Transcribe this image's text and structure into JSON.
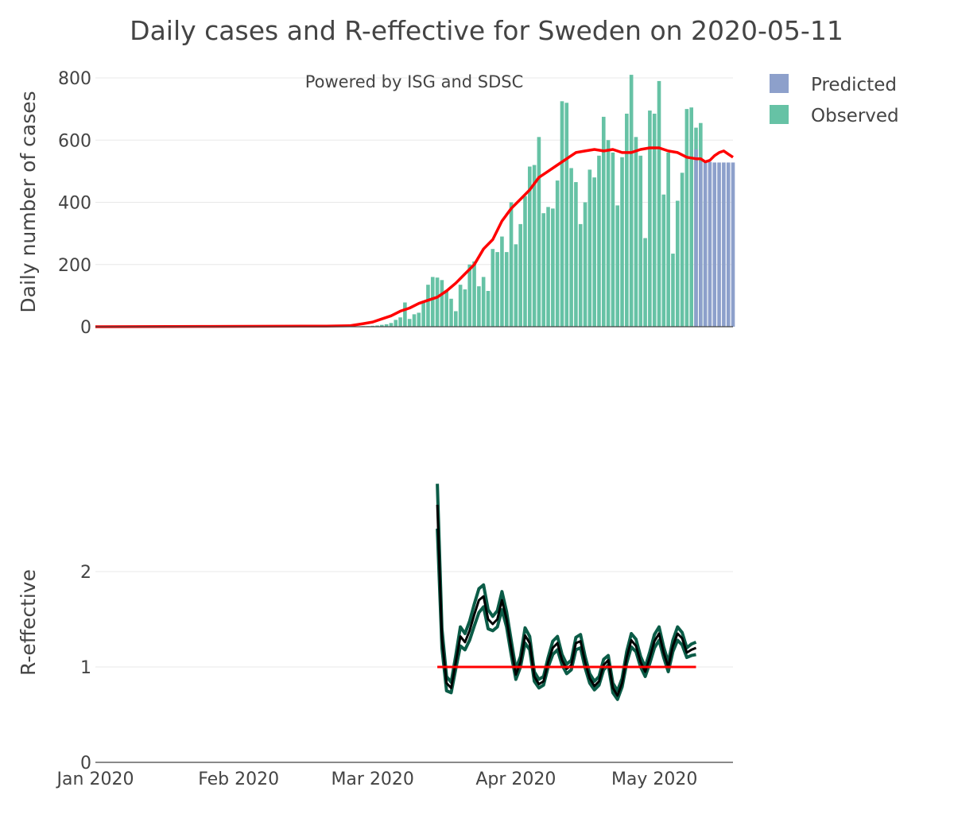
{
  "colors": {
    "observed": "#66c2a5",
    "predicted": "#8da0cb",
    "trend": "#ff0000",
    "r_band": "#0b5c47",
    "r_line": "#000000",
    "grid": "#e8e8e8",
    "text": "#444444"
  },
  "chart_data": [
    {
      "type": "bar",
      "title": "Daily cases and R-effective for Sweden on 2020-05-11",
      "annotation": "Powered by ISG and SDSC",
      "ylabel": "Daily number of cases",
      "ylim": [
        0,
        800
      ],
      "yticks": [
        "0",
        "200",
        "400",
        "600",
        "800"
      ],
      "x_start": "2020-01-01",
      "xlim_days": [
        0,
        138
      ],
      "legend": [
        "Predicted",
        "Observed"
      ],
      "legend_position": "top-right",
      "series": [
        {
          "name": "Observed",
          "start_day": 56,
          "values": [
            1,
            1,
            2,
            2,
            3,
            4,
            6,
            8,
            12,
            22,
            30,
            78,
            25,
            40,
            45,
            80,
            135,
            160,
            158,
            150,
            118,
            90,
            50,
            135,
            120,
            200,
            210,
            130,
            160,
            115,
            250,
            240,
            290,
            240,
            400,
            265,
            330,
            420,
            515,
            520,
            610,
            365,
            385,
            380,
            470,
            725,
            720,
            510,
            465,
            330,
            400,
            505,
            480,
            550,
            675,
            600,
            560,
            390,
            545,
            685,
            810,
            610,
            550,
            285,
            695,
            685,
            790,
            425,
            560,
            235,
            405,
            495,
            700,
            705,
            640,
            655,
            405
          ]
        },
        {
          "name": "Predicted",
          "start_day": 130,
          "values": [
            570,
            530,
            530,
            530,
            528,
            528,
            528,
            528,
            528
          ]
        },
        {
          "name": "Trend",
          "type": "line",
          "days": [
            0,
            25,
            50,
            55,
            58,
            60,
            62,
            64,
            66,
            68,
            70,
            72,
            74,
            76,
            78,
            80,
            82,
            84,
            86,
            88,
            90,
            92,
            94,
            96,
            98,
            100,
            102,
            104,
            106,
            108,
            110,
            112,
            114,
            116,
            118,
            120,
            122,
            124,
            126,
            128,
            130,
            131,
            132,
            133,
            134,
            135,
            136,
            137,
            138
          ],
          "values": [
            0,
            1,
            2,
            3,
            10,
            15,
            25,
            35,
            50,
            60,
            75,
            85,
            95,
            115,
            140,
            170,
            200,
            250,
            280,
            340,
            380,
            410,
            440,
            480,
            500,
            520,
            540,
            560,
            565,
            570,
            565,
            570,
            560,
            560,
            570,
            575,
            575,
            565,
            560,
            545,
            540,
            540,
            530,
            535,
            550,
            560,
            565,
            555,
            545
          ]
        }
      ]
    },
    {
      "type": "line",
      "ylabel": "R-effective",
      "ylim": [
        0,
        3
      ],
      "yticks": [
        "0",
        "1",
        "2"
      ],
      "xlim_days": [
        0,
        138
      ],
      "xticks": [
        {
          "label": "Jan 2020",
          "day": 0
        },
        {
          "label": "Feb 2020",
          "day": 31
        },
        {
          "label": "Mar 2020",
          "day": 60
        },
        {
          "label": "Apr 2020",
          "day": 91
        },
        {
          "label": "May 2020",
          "day": 121
        }
      ],
      "series": [
        {
          "name": "R-effective",
          "days": [
            74,
            75,
            76,
            77,
            78,
            79,
            80,
            81,
            82,
            83,
            84,
            85,
            86,
            87,
            88,
            89,
            90,
            91,
            92,
            93,
            94,
            95,
            96,
            97,
            98,
            99,
            100,
            101,
            102,
            103,
            104,
            105,
            106,
            107,
            108,
            109,
            110,
            111,
            112,
            113,
            114,
            115,
            116,
            117,
            118,
            119,
            120,
            121,
            122,
            123,
            124,
            125,
            126,
            127,
            128,
            129,
            130
          ],
          "values": [
            2.7,
            1.3,
            0.83,
            0.78,
            1.05,
            1.32,
            1.26,
            1.38,
            1.55,
            1.7,
            1.74,
            1.5,
            1.45,
            1.5,
            1.7,
            1.5,
            1.2,
            0.92,
            1.05,
            1.33,
            1.25,
            0.9,
            0.82,
            0.85,
            1.05,
            1.2,
            1.25,
            1.07,
            0.98,
            1.02,
            1.25,
            1.27,
            1.05,
            0.88,
            0.8,
            0.85,
            1.02,
            1.07,
            0.78,
            0.7,
            0.83,
            1.1,
            1.28,
            1.22,
            1.05,
            0.95,
            1.1,
            1.27,
            1.35,
            1.15,
            1.0,
            1.22,
            1.35,
            1.3,
            1.15,
            1.18,
            1.2
          ],
          "lower": [
            2.45,
            1.2,
            0.75,
            0.73,
            0.98,
            1.22,
            1.18,
            1.28,
            1.43,
            1.57,
            1.63,
            1.4,
            1.38,
            1.42,
            1.6,
            1.42,
            1.13,
            0.87,
            1.0,
            1.25,
            1.18,
            0.85,
            0.78,
            0.81,
            1.0,
            1.13,
            1.18,
            1.02,
            0.93,
            0.97,
            1.18,
            1.2,
            0.99,
            0.83,
            0.76,
            0.81,
            0.97,
            1.02,
            0.73,
            0.66,
            0.79,
            1.04,
            1.21,
            1.16,
            1.0,
            0.9,
            1.04,
            1.2,
            1.28,
            1.1,
            0.95,
            1.16,
            1.28,
            1.23,
            1.1,
            1.12,
            1.13
          ],
          "upper": [
            2.92,
            1.4,
            0.9,
            0.84,
            1.12,
            1.42,
            1.35,
            1.48,
            1.66,
            1.82,
            1.86,
            1.6,
            1.53,
            1.59,
            1.79,
            1.58,
            1.28,
            0.98,
            1.11,
            1.41,
            1.32,
            0.95,
            0.87,
            0.9,
            1.1,
            1.27,
            1.32,
            1.13,
            1.03,
            1.07,
            1.31,
            1.34,
            1.11,
            0.93,
            0.85,
            0.9,
            1.08,
            1.12,
            0.83,
            0.75,
            0.88,
            1.16,
            1.35,
            1.29,
            1.11,
            1.0,
            1.16,
            1.34,
            1.42,
            1.21,
            1.05,
            1.28,
            1.42,
            1.36,
            1.2,
            1.24,
            1.26
          ]
        },
        {
          "name": "Threshold",
          "days": [
            74,
            130
          ],
          "values": [
            1,
            1
          ]
        }
      ]
    }
  ]
}
